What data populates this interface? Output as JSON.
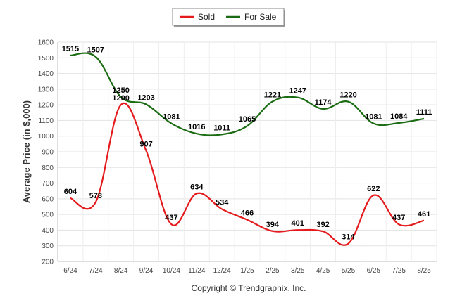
{
  "chart_data": {
    "type": "line",
    "categories": [
      "6/24",
      "7/24",
      "8/24",
      "9/24",
      "10/24",
      "11/24",
      "12/24",
      "1/25",
      "2/25",
      "3/25",
      "4/25",
      "5/25",
      "6/25",
      "7/25",
      "8/25"
    ],
    "series": [
      {
        "name": "Sold",
        "color": "#e41a1c",
        "values": [
          604,
          578,
          1200,
          907,
          437,
          634,
          534,
          466,
          394,
          401,
          392,
          314,
          622,
          437,
          461
        ]
      },
      {
        "name": "For Sale",
        "color": "#1a6b12",
        "values": [
          1515,
          1507,
          1250,
          1203,
          1081,
          1016,
          1011,
          1065,
          1221,
          1247,
          1174,
          1220,
          1081,
          1084,
          1111
        ]
      }
    ],
    "ylabel": "Average Price (in $,000)",
    "xlabel": "",
    "ylim": [
      200,
      1600
    ],
    "yticks": [
      200,
      300,
      400,
      500,
      600,
      700,
      800,
      900,
      1000,
      1100,
      1200,
      1300,
      1400,
      1500,
      1600
    ],
    "grid": true,
    "legend_position": "top-center"
  },
  "footer": {
    "copyright": "Copyright © Trendgraphix, Inc."
  }
}
